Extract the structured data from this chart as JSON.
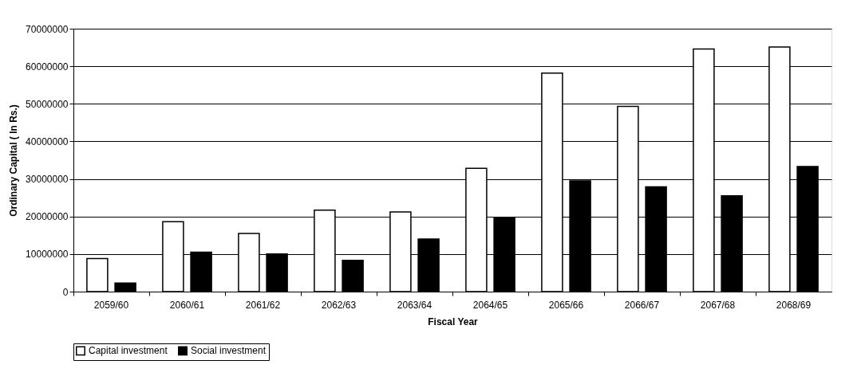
{
  "chart_data": {
    "type": "bar",
    "xlabel": "Fiscal Year",
    "ylabel": "Ordinary Capital ( In Rs.)",
    "categories": [
      "2059/60",
      "2060/61",
      "2061/62",
      "2062/63",
      "2063/64",
      "2064/65",
      "2065/66",
      "2066/67",
      "2067/68",
      "2068/69"
    ],
    "series": [
      {
        "name": "Capital investment",
        "color": "#ffffff",
        "values": [
          8800000,
          18600000,
          15500000,
          21700000,
          21200000,
          32800000,
          58200000,
          49300000,
          64600000,
          65100000
        ]
      },
      {
        "name": "Social investment",
        "color": "#000000",
        "values": [
          2300000,
          10500000,
          10000000,
          8300000,
          14000000,
          19800000,
          29500000,
          27900000,
          25500000,
          33300000
        ]
      }
    ],
    "ylim": [
      0,
      70000000
    ],
    "yticks": [
      0,
      10000000,
      20000000,
      30000000,
      40000000,
      50000000,
      60000000,
      70000000
    ],
    "grid": "y",
    "legend": "bottom"
  }
}
